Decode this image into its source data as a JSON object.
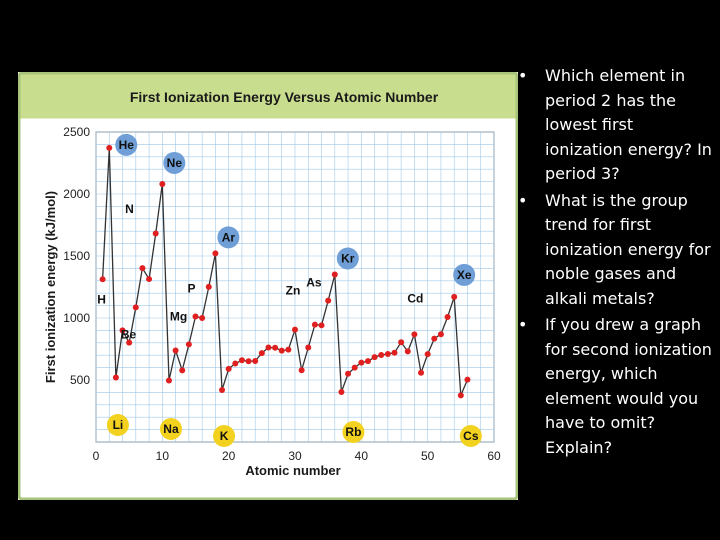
{
  "chart_data": {
    "type": "line",
    "title": "First Ionization Energy Versus Atomic Number",
    "xlabel": "Atomic number",
    "ylabel": "First ionization energy (kJ/mol)",
    "xlim": [
      0,
      60
    ],
    "ylim": [
      0,
      2500
    ],
    "xticks": [
      0,
      10,
      20,
      30,
      40,
      50,
      60
    ],
    "yticks": [
      500,
      1000,
      1500,
      2000,
      2500
    ],
    "grid": true,
    "series": [
      {
        "x": [
          1,
          2,
          3,
          4,
          5,
          6,
          7,
          8,
          9,
          10,
          11,
          12,
          13,
          14,
          15,
          16,
          17,
          18,
          19,
          20,
          21,
          22,
          23,
          24,
          25,
          26,
          27,
          28,
          29,
          30,
          31,
          32,
          33,
          34,
          35,
          36,
          37,
          38,
          39,
          40,
          41,
          42,
          43,
          44,
          45,
          46,
          47,
          48,
          49,
          50,
          51,
          52,
          53,
          54,
          55,
          56
        ],
        "y": [
          1312,
          2372,
          520,
          900,
          801,
          1086,
          1402,
          1314,
          1681,
          2081,
          496,
          738,
          578,
          787,
          1012,
          1000,
          1251,
          1521,
          419,
          590,
          633,
          659,
          651,
          653,
          717,
          762,
          760,
          737,
          745,
          906,
          579,
          762,
          947,
          941,
          1140,
          1351,
          403,
          550,
          600,
          640,
          652,
          684,
          702,
          710,
          720,
          804,
          731,
          868,
          558,
          709,
          834,
          869,
          1008,
          1170,
          376,
          503
        ]
      }
    ],
    "labels": [
      {
        "text": "He",
        "x": 2,
        "style": "bubble-blue"
      },
      {
        "text": "Ne",
        "x": 10,
        "style": "bubble-blue"
      },
      {
        "text": "Ar",
        "x": 18,
        "style": "bubble-blue"
      },
      {
        "text": "Kr",
        "x": 36,
        "style": "bubble-blue"
      },
      {
        "text": "Xe",
        "x": 54,
        "style": "bubble-blue"
      },
      {
        "text": "Li",
        "x": 3,
        "style": "bubble-yellow"
      },
      {
        "text": "Na",
        "x": 11,
        "style": "bubble-yellow"
      },
      {
        "text": "K",
        "x": 19,
        "style": "bubble-yellow"
      },
      {
        "text": "Rb",
        "x": 37,
        "style": "bubble-yellow"
      },
      {
        "text": "Cs",
        "x": 55,
        "style": "bubble-yellow"
      },
      {
        "text": "H",
        "x": 1,
        "style": "plain"
      },
      {
        "text": "Be",
        "x": 4,
        "style": "plain"
      },
      {
        "text": "N",
        "x": 7,
        "style": "plain"
      },
      {
        "text": "Mg",
        "x": 12,
        "style": "plain"
      },
      {
        "text": "P",
        "x": 15,
        "style": "plain"
      },
      {
        "text": "Zn",
        "x": 30,
        "style": "plain"
      },
      {
        "text": "As",
        "x": 33,
        "style": "plain"
      },
      {
        "text": "Cd",
        "x": 48,
        "style": "plain"
      }
    ],
    "colors": {
      "point": "#e02020",
      "line": "#333333",
      "grid": "#9fc8e8",
      "header_bg": "#c9dd8e",
      "frame": "#a8c47a",
      "bubble_blue": "#6f9fd6",
      "bubble_yellow": "#f2d21e"
    }
  },
  "bullets": [
    "Which element in period 2 has the lowest first ionization energy? In period 3?",
    "What is the group trend for first ionization energy for noble gases and alkali metals?",
    "If you drew a graph for second ionization energy, which element would you have to omit? Explain?"
  ],
  "bullet_symbol": "•"
}
